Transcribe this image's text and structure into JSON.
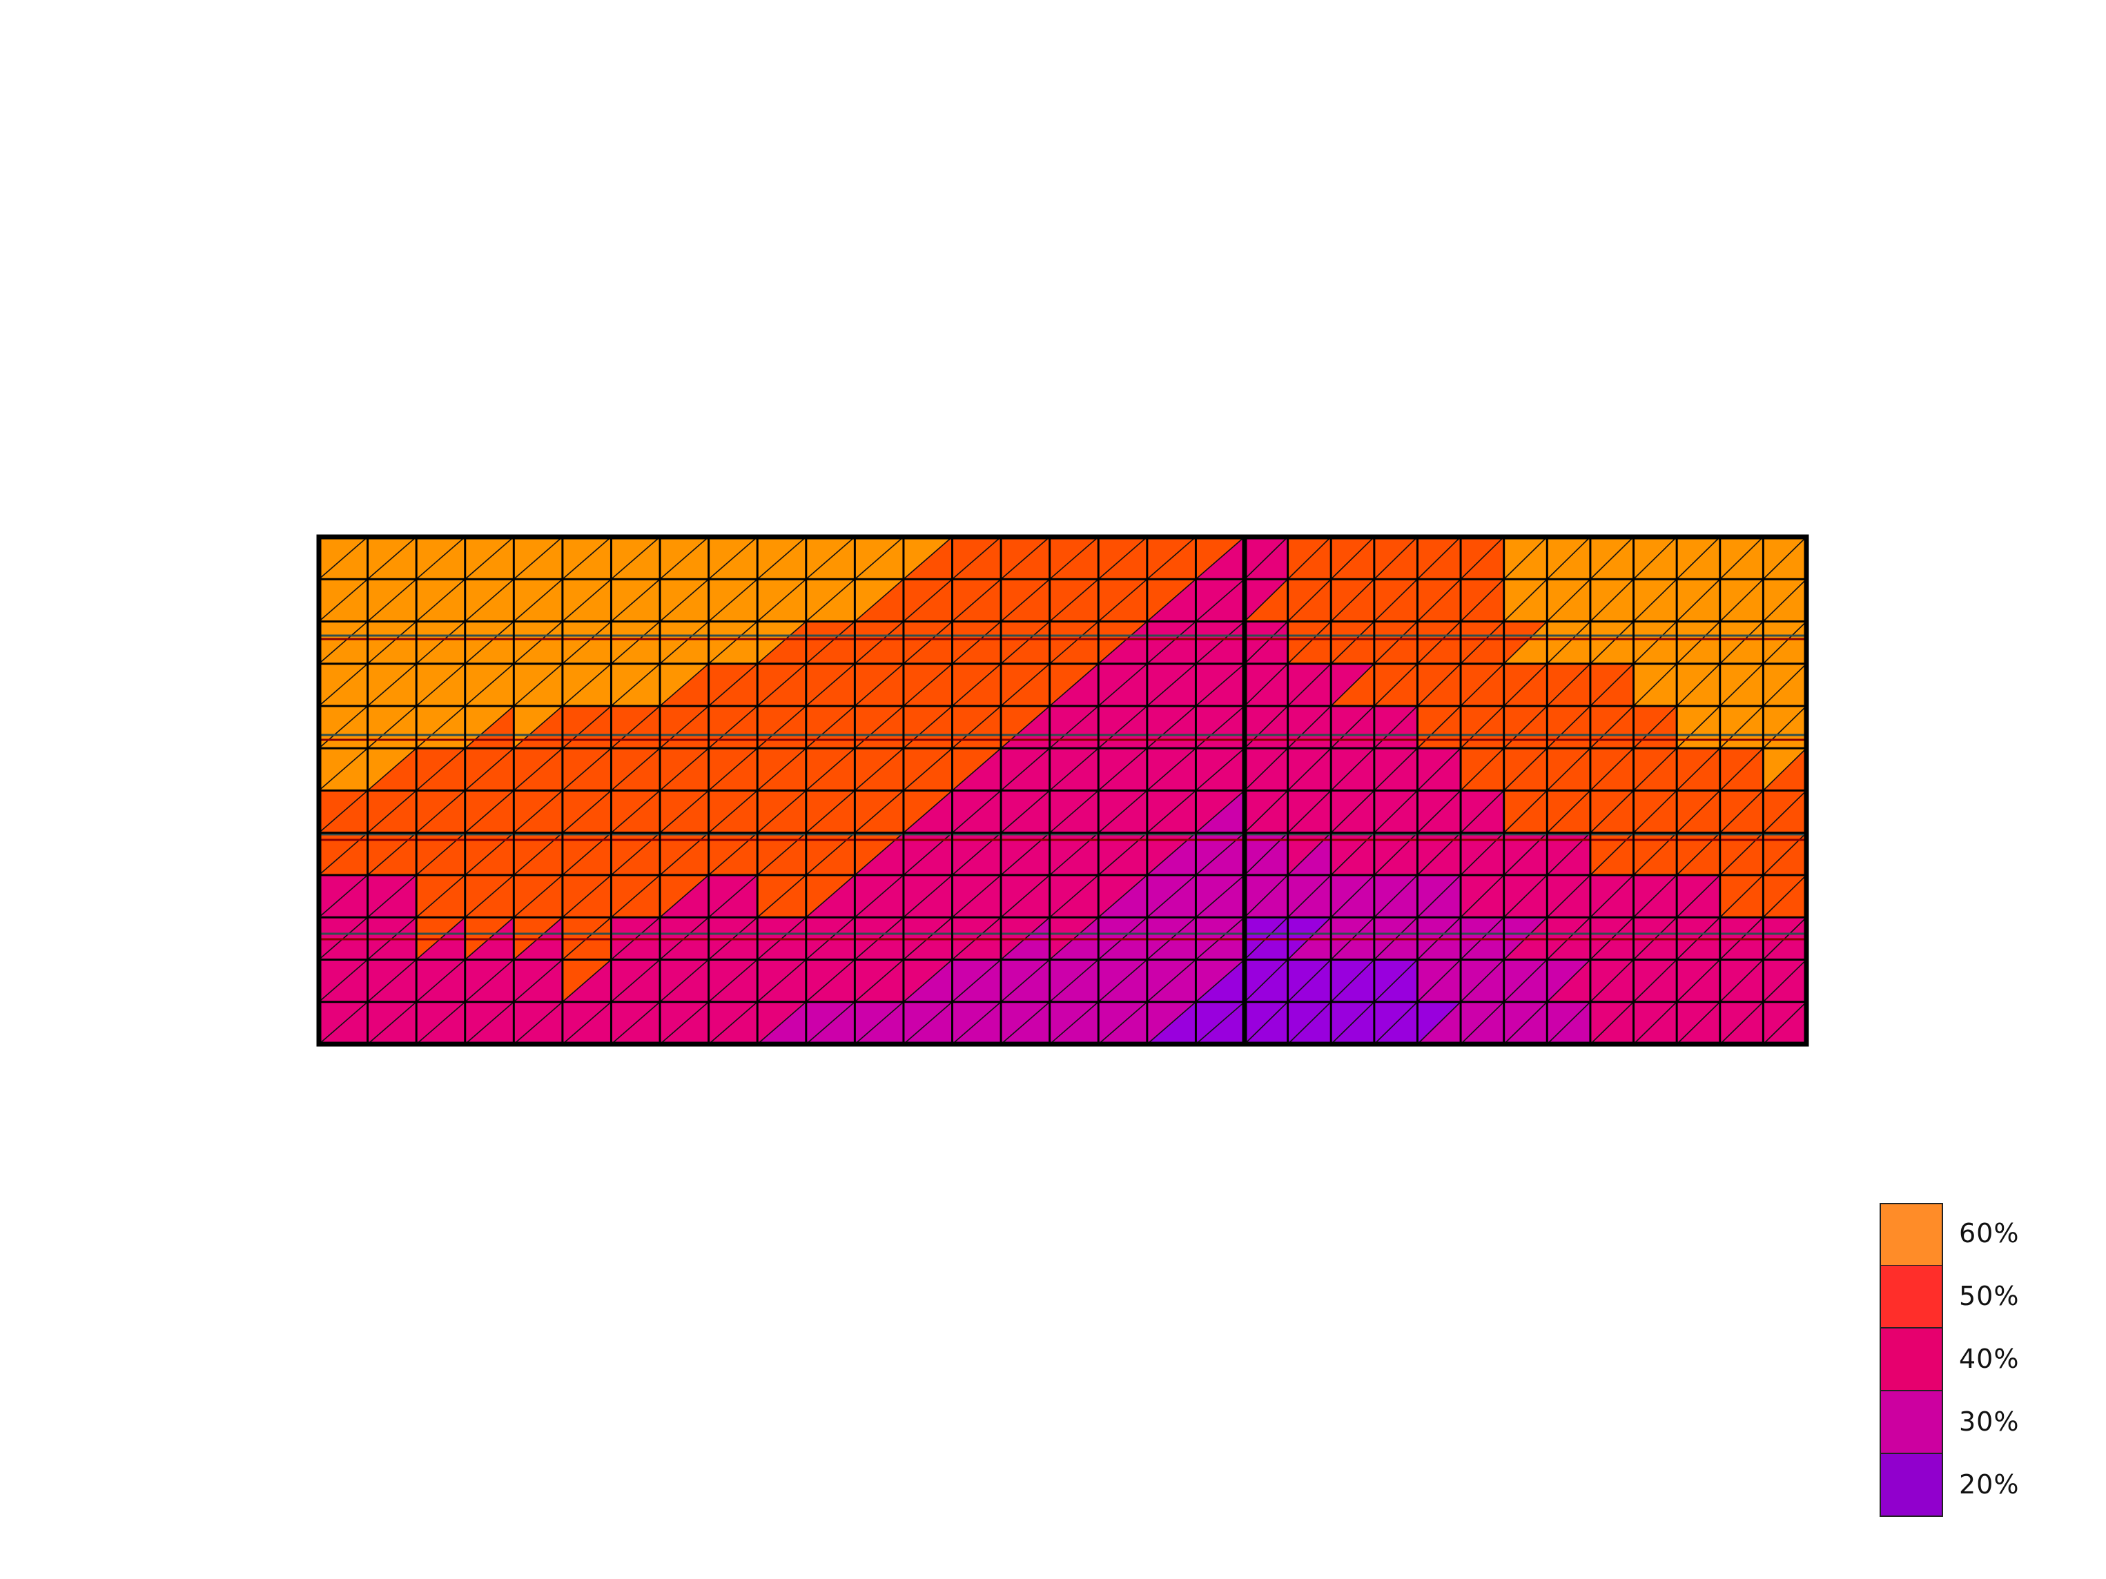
{
  "chart_data": {
    "type": "heatmap",
    "title": "",
    "xlabel": "",
    "ylabel": "",
    "grid": true,
    "legend_placement": "bottom-right",
    "legend": [
      {
        "label": "60%",
        "value": 60,
        "color": "#FF8C28"
      },
      {
        "label": "50%",
        "value": 50,
        "color": "#FF2E2A"
      },
      {
        "label": "40%",
        "value": 40,
        "color": "#E6006E"
      },
      {
        "label": "30%",
        "value": 30,
        "color": "#CC00A0"
      },
      {
        "label": "20%",
        "value": 20,
        "color": "#9100CD"
      }
    ],
    "mesh_colors": {
      "60": "#FF9500",
      "50": "#FF5000",
      "40": "#E6007A",
      "30": "#CC00AA",
      "20": "#9900DD"
    },
    "cells": [
      "60 60 60 60 60 60 60 60 60 60 60 60 60/50 50 50 50 50 50 50/40 | 40 50 50 50 50 50 60 60 60 60 60 60 60",
      "60 60 60 60 60 60 60 60 60 60 60 60/50 50 50 50 50 50 50/40 40 | 40/50 50 50 50 50 50 60 60 60 60 60 60 60",
      "60 60 60 60 60 60 60 60 60 60/50 50 50 50 50 50 50 50/40 40 40 | 40 50 50 50 50 50 50/60 60 60 60 60 60 60",
      "60 60 60 60 60 60 60 60/50 50 50 50 50 50 50 50 50/40 40 40 40 | 40 40 40/50 50 50 50 50 50 50 60 60 60 60",
      "60 60 60 60/50 60/50 50 50 50 50 50 50 50 50 50 50/40 40 40 40 40 | 40 40 40 40 50 50 50 50 50 50 60 60 60",
      "60 60/50 50 50 50 50 50 50 50 50 50 50 50 50/40 40 40 40 40 40 | 40 40 40 40 40 50 50 50 50 50 50 50 60/50",
      "50 50 50 50 50 50 50 50 50 50 50 50 50/40 40 40 40 40 40 40/30 | 40 40 40 40 40 40 50 50 50 50 50 50 50",
      "50 50 50 50 50 50 50 50 50 50 50 50/40 40 40 40 40 40 40/30 30 | 30 40/30 40 40 40 40 40 40 50 50 50 50 50",
      "40 40 50 50 50 50 50 50/40 40 50 50/40 40 40 40 40 40 40/30 30 30 | 30 30 30 30 30 40 40 40 40 40 40 50 50",
      "40 40 50/40 50/40 50/40 50 40 40 40 40 40 40 40 40 40/30 40/30 30 30 30 | 20 20/30 30 30 30 30 30/40 40 40 40 40 40 40",
      "40 40 40 40 40 50/40 40 40 40 40 40 40 40/30 30 30 30 30 30 30/20 | 20 20 20 20 30 30 30 30/40 40 40 40 40 40",
      "40 40 40 40 40 40 40 40 40 40/30 30 30 30 30 30 30 30 30/20 20 | 20 20 20 20 20/30 30 30 30 40 40 40 40 40"
    ]
  }
}
